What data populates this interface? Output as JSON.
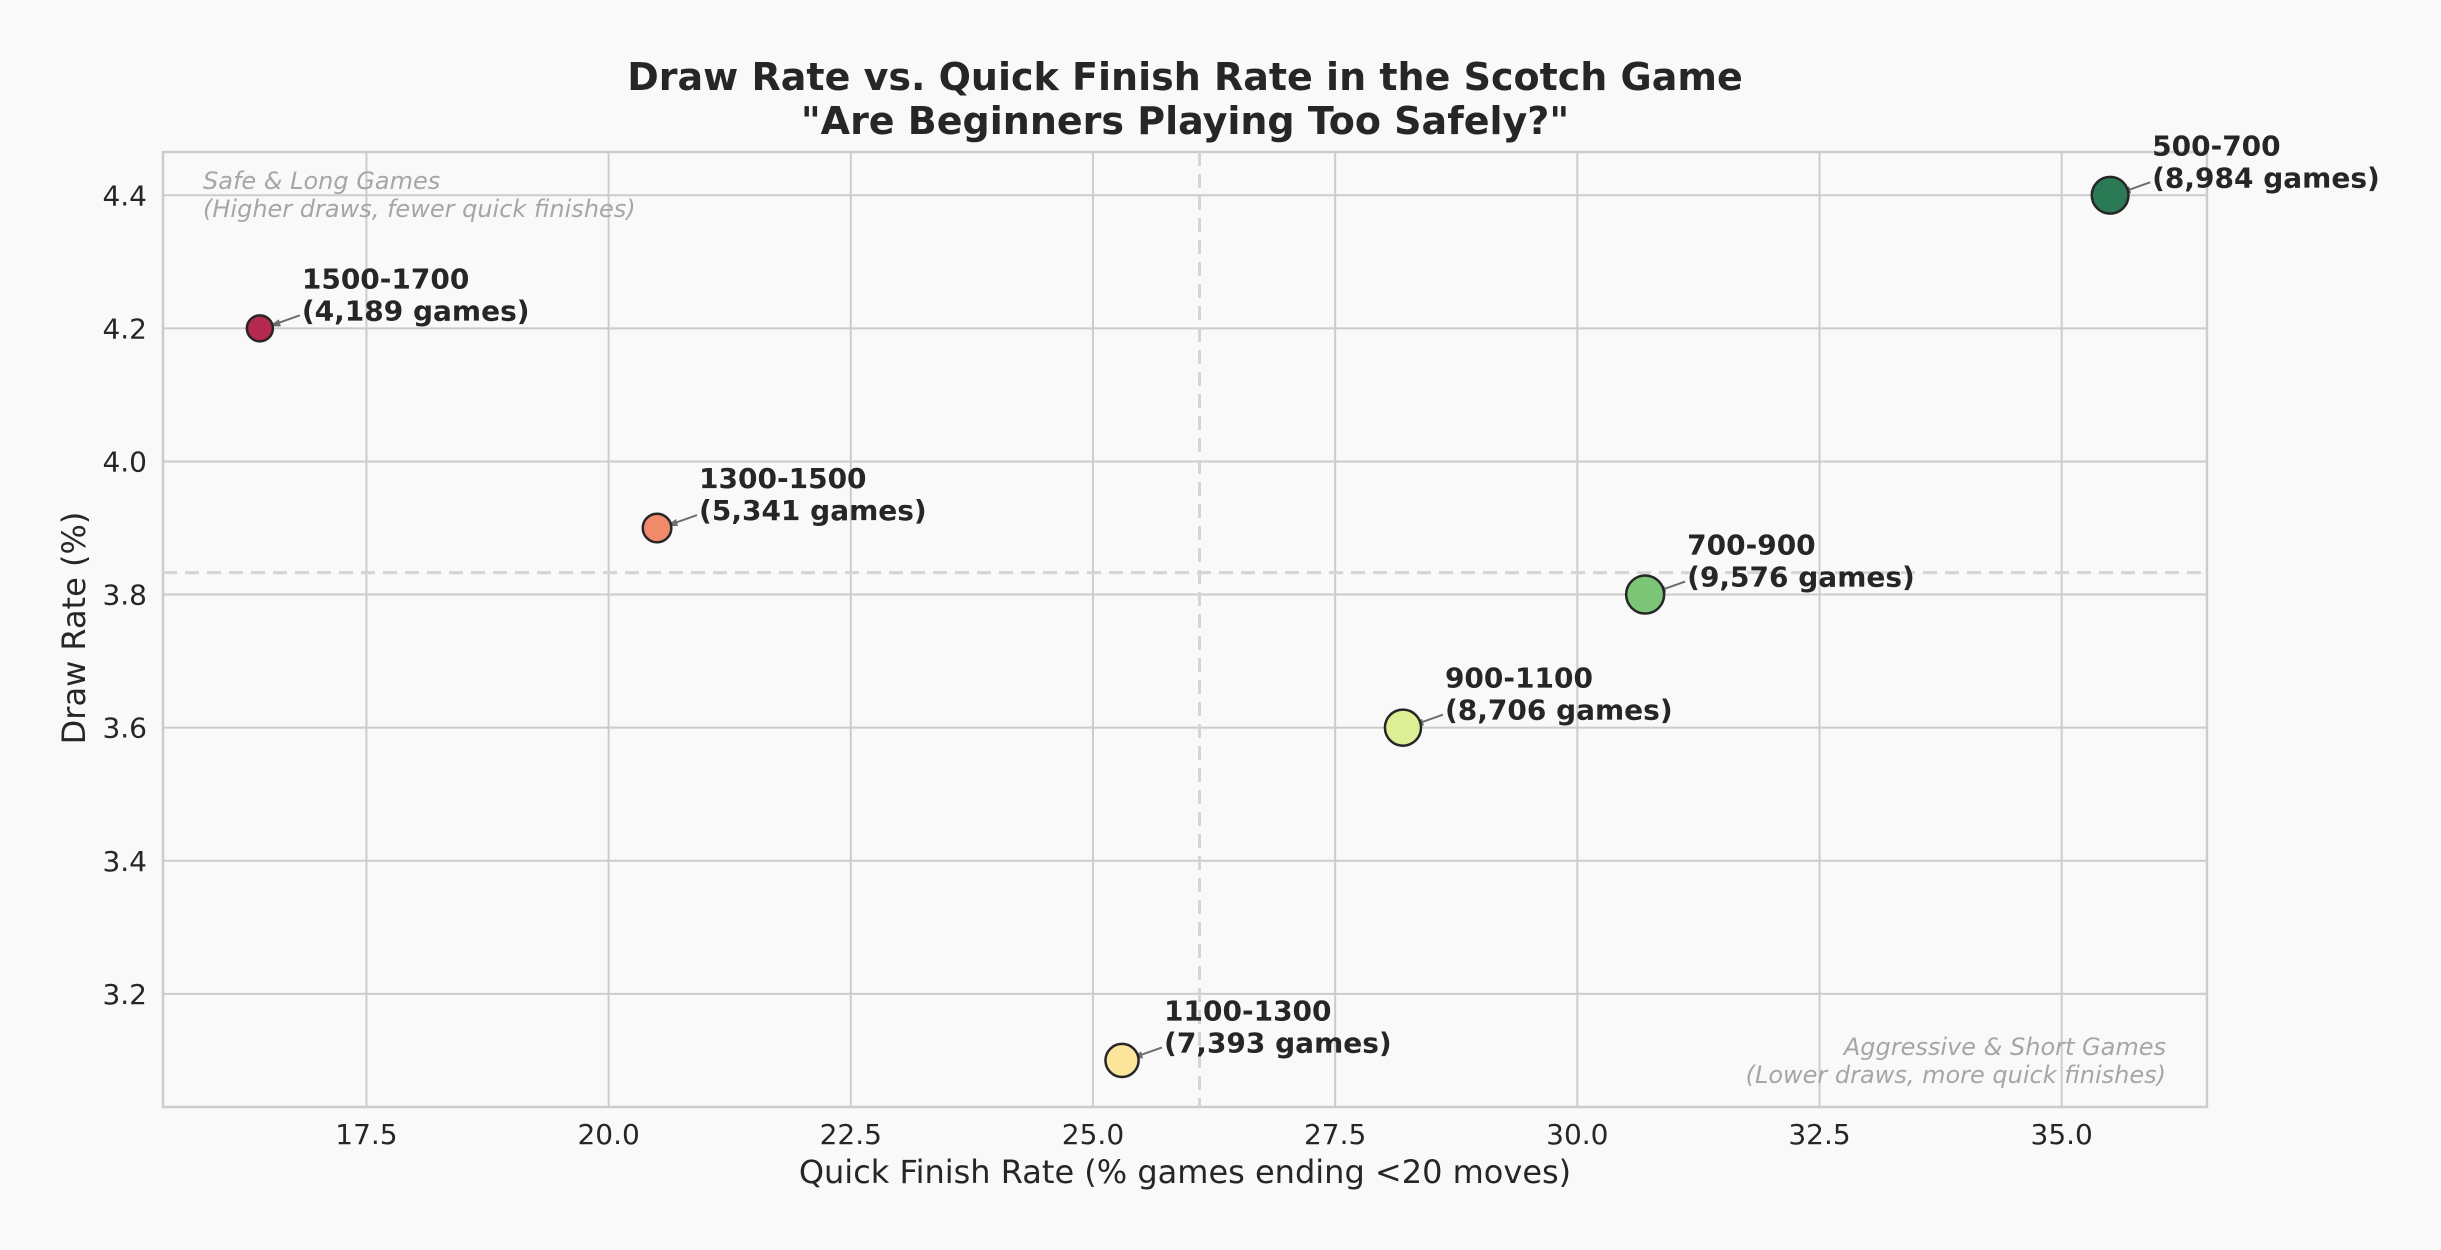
{
  "chart_data": {
    "type": "scatter",
    "title": "Draw Rate vs. Quick Finish Rate in the Scotch Game",
    "subtitle": "\"Are Beginners Playing Too Safely?\"",
    "xlabel": "Quick Finish Rate (% games ending <20 moves)",
    "ylabel": "Draw Rate (%)",
    "xlim": [
      15.4,
      36.5
    ],
    "ylim": [
      3.03,
      4.465
    ],
    "xticks": [
      17.5,
      20.0,
      22.5,
      25.0,
      27.5,
      30.0,
      32.5,
      35.0
    ],
    "xtick_labels": [
      "17.5",
      "20.0",
      "22.5",
      "25.0",
      "27.5",
      "30.0",
      "32.5",
      "35.0"
    ],
    "yticks": [
      3.2,
      3.4,
      3.6,
      3.8,
      4.0,
      4.2,
      4.4
    ],
    "ytick_labels": [
      "3.2",
      "3.4",
      "3.6",
      "3.8",
      "4.0",
      "4.2",
      "4.4"
    ],
    "grid": true,
    "reference_lines": {
      "x_mean": 26.1,
      "y_mean": 3.833
    },
    "points": [
      {
        "label": "500-700",
        "games": 8984,
        "games_text": "(8,984 games)",
        "x": 35.5,
        "y": 4.4,
        "color": "#2a7a56"
      },
      {
        "label": "700-900",
        "games": 9576,
        "games_text": "(9,576 games)",
        "x": 30.7,
        "y": 3.8,
        "color": "#7dc576"
      },
      {
        "label": "900-1100",
        "games": 8706,
        "games_text": "(8,706 games)",
        "x": 28.2,
        "y": 3.6,
        "color": "#dcef95"
      },
      {
        "label": "1100-1300",
        "games": 7393,
        "games_text": "(7,393 games)",
        "x": 25.3,
        "y": 3.1,
        "color": "#fde49b"
      },
      {
        "label": "1300-1500",
        "games": 5341,
        "games_text": "(5,341 games)",
        "x": 20.5,
        "y": 3.9,
        "color": "#f08a6b"
      },
      {
        "label": "1500-1700",
        "games": 4189,
        "games_text": "(4,189 games)",
        "x": 16.4,
        "y": 4.2,
        "color": "#b5294e"
      }
    ],
    "annotations": {
      "top_left": [
        "Safe & Long Games",
        "(Higher draws, fewer quick finishes)"
      ],
      "bottom_right": [
        "Aggressive & Short Games",
        "(Lower draws, more quick finishes)"
      ]
    }
  },
  "colors": {
    "background": "#f9f9f9",
    "grid": "#cccccc",
    "axes_edge": "#cccccc",
    "reference_line": "#d5d5d5",
    "text": "#262626",
    "note": "#a6a6a6",
    "marker_edge": "#262626"
  }
}
